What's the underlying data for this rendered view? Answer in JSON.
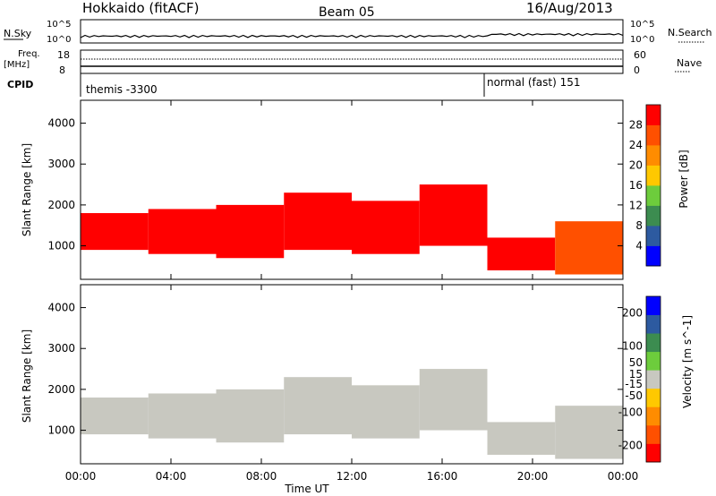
{
  "header": {
    "station": "Hokkaido (fitACF)",
    "beam": "Beam 05",
    "date": "16/Aug/2013"
  },
  "noise_panel": {
    "left_label": "N.Sky",
    "right_label": "N.Search",
    "left_ticks": [
      "10^5",
      "10^0"
    ],
    "right_ticks": [
      "10^5",
      "10^0"
    ]
  },
  "freq_panel": {
    "left_label_line1": "Freq.",
    "left_label_line2": "[MHz]",
    "right_label": "Nave",
    "left_ticks": [
      "18",
      "8"
    ],
    "right_ticks": [
      "60",
      "0"
    ]
  },
  "cpid_panel": {
    "label": "CPID",
    "modes": [
      {
        "name": "themis -3300",
        "start_hour": 0
      },
      {
        "name": "normal (fast) 151",
        "start_hour": 18
      }
    ]
  },
  "x_axis": {
    "label": "Time UT",
    "ticks": [
      "00:00",
      "04:00",
      "08:00",
      "12:00",
      "16:00",
      "20:00",
      "00:00"
    ]
  },
  "chart_data": [
    {
      "type": "heatmap",
      "name": "power",
      "ylabel": "Slant Range [km]",
      "yticks": [
        1000,
        2000,
        3000,
        4000
      ],
      "ylim": [
        180,
        4560
      ],
      "xlim_hours": [
        0,
        24
      ],
      "colorbar_label": "Power [dB]",
      "colorbar_ticks": [
        4,
        8,
        12,
        16,
        20,
        24,
        28
      ],
      "colorbar_range": [
        0,
        32
      ],
      "colors": [
        "#0000ff",
        "#2d5aa0",
        "#3c8c50",
        "#6dcc3c",
        "#ffc800",
        "#ff8c00",
        "#ff5000",
        "#ff0000"
      ],
      "bands": [
        {
          "t0": 0.0,
          "t1": 3.0,
          "r0": 900,
          "r1": 1800,
          "level": 28
        },
        {
          "t0": 3.0,
          "t1": 6.0,
          "r0": 800,
          "r1": 1900,
          "level": 28
        },
        {
          "t0": 6.0,
          "t1": 9.0,
          "r0": 700,
          "r1": 2000,
          "level": 28
        },
        {
          "t0": 9.0,
          "t1": 12.0,
          "r0": 900,
          "r1": 2300,
          "level": 28
        },
        {
          "t0": 12.0,
          "t1": 15.0,
          "r0": 800,
          "r1": 2100,
          "level": 28
        },
        {
          "t0": 15.0,
          "t1": 18.0,
          "r0": 1000,
          "r1": 2500,
          "level": 28
        },
        {
          "t0": 18.0,
          "t1": 21.0,
          "r0": 400,
          "r1": 1200,
          "level": 28
        },
        {
          "t0": 21.0,
          "t1": 24.0,
          "r0": 300,
          "r1": 1600,
          "level": 26
        }
      ]
    },
    {
      "type": "heatmap",
      "name": "velocity",
      "ylabel": "Slant Range [km]",
      "yticks": [
        1000,
        2000,
        3000,
        4000
      ],
      "ylim": [
        180,
        4560
      ],
      "xlim_hours": [
        0,
        24
      ],
      "colorbar_label": "Velocity [m s^-1]",
      "colorbar_ticks": [
        200,
        100,
        50,
        15,
        -15,
        -50,
        -100,
        -200
      ],
      "colorbar_range": [
        -250,
        250
      ],
      "colors": [
        "#ff0000",
        "#ff5000",
        "#ff8c00",
        "#ffc800",
        "#c8c8c0",
        "#6dcc3c",
        "#3c8c50",
        "#2d5aa0",
        "#0000ff"
      ],
      "bands": [
        {
          "t0": 0.0,
          "t1": 3.0,
          "r0": 900,
          "r1": 1800,
          "level": 0
        },
        {
          "t0": 3.0,
          "t1": 6.0,
          "r0": 800,
          "r1": 1900,
          "level": 0
        },
        {
          "t0": 6.0,
          "t1": 9.0,
          "r0": 700,
          "r1": 2000,
          "level": 0
        },
        {
          "t0": 9.0,
          "t1": 12.0,
          "r0": 900,
          "r1": 2300,
          "level": 0
        },
        {
          "t0": 12.0,
          "t1": 15.0,
          "r0": 800,
          "r1": 2100,
          "level": 0
        },
        {
          "t0": 15.0,
          "t1": 18.0,
          "r0": 1000,
          "r1": 2500,
          "level": 0
        },
        {
          "t0": 18.0,
          "t1": 21.0,
          "r0": 400,
          "r1": 1200,
          "level": 0
        },
        {
          "t0": 21.0,
          "t1": 24.0,
          "r0": 300,
          "r1": 1600,
          "level": 0
        }
      ]
    }
  ]
}
